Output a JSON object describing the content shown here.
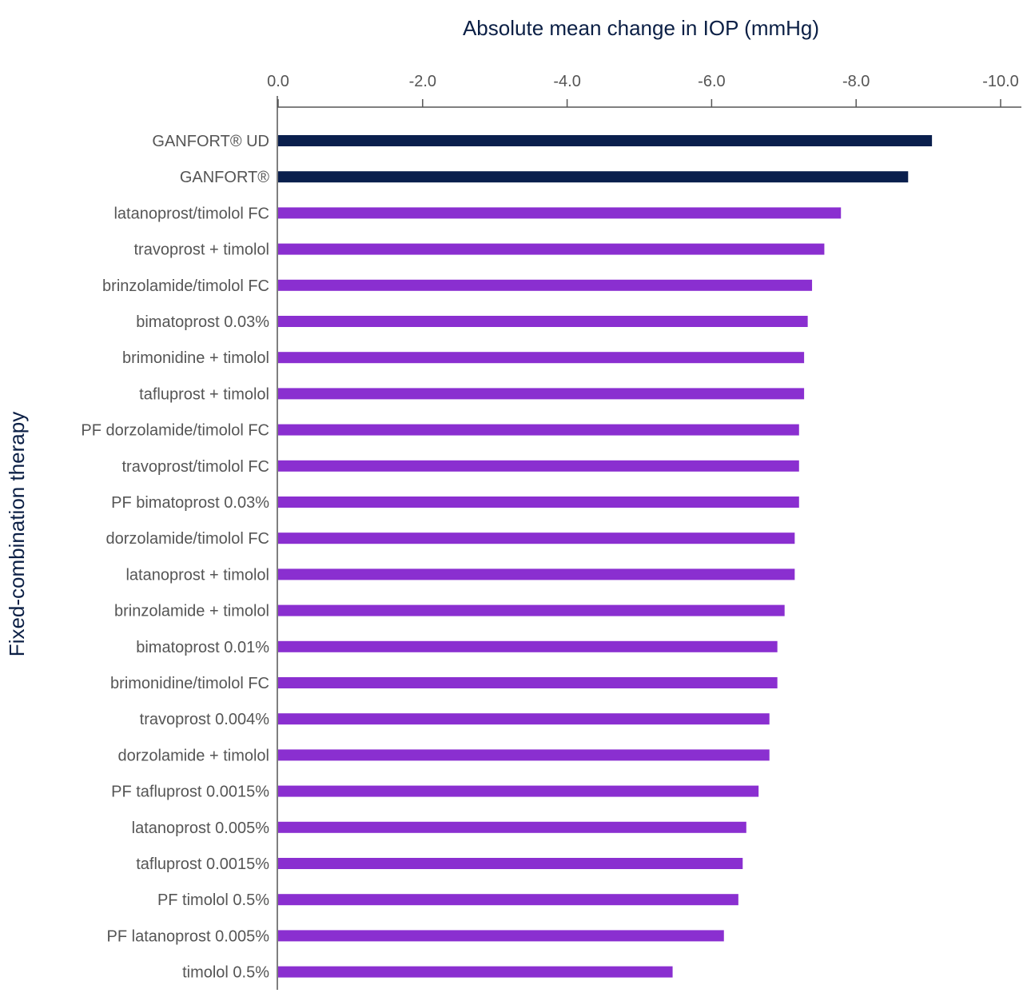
{
  "chart_data": {
    "type": "bar",
    "orientation": "horizontal",
    "title": "Absolute mean change in IOP (mmHg)",
    "xlabel": "Absolute mean change in IOP (mmHg)",
    "ylabel": "Fixed-combination therapy",
    "xlim": [
      0,
      -10
    ],
    "xticks": [
      "0.0",
      "-2.0",
      "-4.0",
      "-6.0",
      "-8.0",
      "-10.0"
    ],
    "xtick_values": [
      0,
      -2,
      -4,
      -6,
      -8,
      -10
    ],
    "categories": [
      "GANFORT® UD",
      "GANFORT®",
      "latanoprost/timolol FC",
      "travoprost + timolol",
      "brinzolamide/timolol FC",
      "bimatoprost 0.03%",
      "brimonidine + timolol",
      "tafluprost + timolol",
      "PF dorzolamide/timolol FC",
      "travoprost/timolol FC",
      "PF bimatoprost 0.03%",
      "dorzolamide/timolol FC",
      "latanoprost + timolol",
      "brinzolamide + timolol",
      "bimatoprost 0.01%",
      "brimonidine/timolol FC",
      "travoprost 0.004%",
      "dorzolamide + timolol",
      "PF tafluprost 0.0015%",
      "latanoprost 0.005%",
      "tafluprost 0.0015%",
      "PF timolol 0.5%",
      "PF latanoprost 0.005%",
      "timolol 0.5%"
    ],
    "values": [
      -9.05,
      -8.72,
      -7.79,
      -7.56,
      -7.39,
      -7.33,
      -7.28,
      -7.28,
      -7.21,
      -7.21,
      -7.21,
      -7.15,
      -7.15,
      -7.01,
      -6.91,
      -6.91,
      -6.8,
      -6.8,
      -6.65,
      -6.48,
      -6.43,
      -6.37,
      -6.17,
      -5.46
    ],
    "colors": {
      "highlight": "#0a1f4d",
      "default": "#8a2fd0"
    },
    "highlight_count": 2,
    "grid": false
  }
}
